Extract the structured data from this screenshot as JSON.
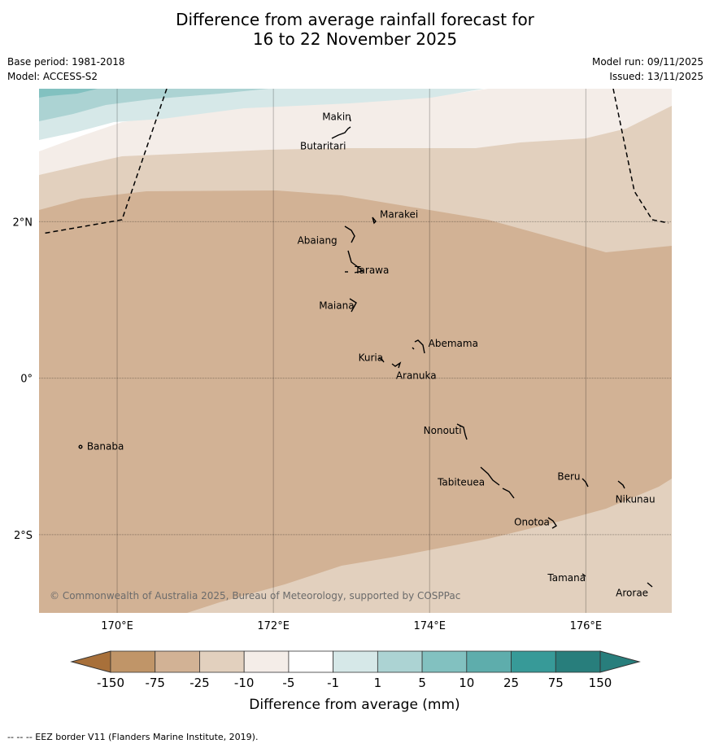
{
  "title": {
    "line1": "Difference from average rainfall forecast for",
    "line2": "16 to 22 November 2025"
  },
  "meta": {
    "base_period": "Base period: 1981-2018",
    "model": "Model: ACCESS-S2",
    "model_run": "Model run: 09/11/2025",
    "issued": "Issued: 13/11/2025"
  },
  "map": {
    "lon_range": [
      169,
      177.1
    ],
    "lat_range": [
      -3,
      3.7
    ],
    "lon_ticks": [
      "170°E",
      "172°E",
      "174°E",
      "176°E"
    ],
    "lat_ticks": [
      "2°N",
      "0°",
      "2°S"
    ],
    "copyright": "© Commonwealth of Australia 2025, Bureau of Meteorology, supported by COSPPac",
    "places": [
      {
        "name": "Makin",
        "lon": 173.0,
        "lat": 3.35
      },
      {
        "name": "Butaritari",
        "lon": 172.8,
        "lat": 3.05
      },
      {
        "name": "Marakei",
        "lon": 173.3,
        "lat": 2.0
      },
      {
        "name": "Abaiang",
        "lon": 172.9,
        "lat": 1.8
      },
      {
        "name": "Tarawa",
        "lon": 173.0,
        "lat": 1.4
      },
      {
        "name": "Maiana",
        "lon": 173.0,
        "lat": 0.95
      },
      {
        "name": "Abemama",
        "lon": 173.9,
        "lat": 0.4
      },
      {
        "name": "Kuria",
        "lon": 173.4,
        "lat": 0.22
      },
      {
        "name": "Aranuka",
        "lon": 173.6,
        "lat": 0.17
      },
      {
        "name": "Nonouti",
        "lon": 174.4,
        "lat": -0.65
      },
      {
        "name": "Banaba",
        "lon": 169.55,
        "lat": -0.87
      },
      {
        "name": "Tabiteuea",
        "lon": 174.8,
        "lat": -1.3
      },
      {
        "name": "Beru",
        "lon": 176.0,
        "lat": -1.33
      },
      {
        "name": "Nikunau",
        "lon": 176.45,
        "lat": -1.38
      },
      {
        "name": "Onotoa",
        "lon": 175.55,
        "lat": -1.8
      },
      {
        "name": "Tamana",
        "lon": 175.98,
        "lat": -2.5
      },
      {
        "name": "Arorae",
        "lon": 176.8,
        "lat": -2.65
      }
    ]
  },
  "legend": {
    "title": "Difference from average (mm)",
    "ticks": [
      "-150",
      "-75",
      "-25",
      "-10",
      "-5",
      "-1",
      "1",
      "5",
      "10",
      "25",
      "75",
      "150"
    ],
    "colors": [
      "#a8703a",
      "#c09568",
      "#d2b295",
      "#e2d0be",
      "#f4ede8",
      "#ffffff",
      "#d6e8e8",
      "#acd3d3",
      "#82c1c0",
      "#5eadac",
      "#379a98",
      "#287e7c"
    ]
  },
  "footnote": "-- -- -- EEZ border V11 (Flanders Marine Institute, 2019)."
}
